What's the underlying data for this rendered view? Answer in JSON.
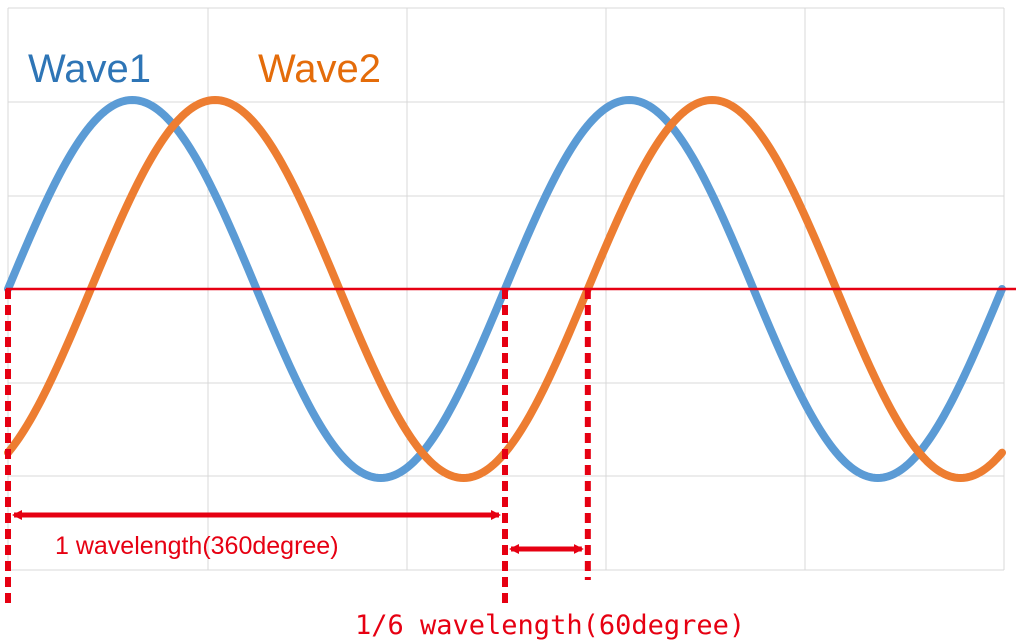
{
  "chart_data": {
    "type": "line",
    "x_unit": "degree",
    "xlim": [
      0,
      720
    ],
    "ylim": [
      -1,
      1
    ],
    "grid": true,
    "legend": [
      "Wave1",
      "Wave2"
    ],
    "series": [
      {
        "name": "Wave1",
        "phase_shift_degree": 0,
        "color": "#5b9bd5",
        "x": [
          0,
          30,
          60,
          90,
          120,
          150,
          180,
          210,
          240,
          270,
          300,
          330,
          360,
          390,
          420,
          450,
          480,
          510,
          540,
          570,
          600,
          630,
          660,
          690,
          720
        ],
        "values": [
          0,
          0.5,
          0.866,
          1,
          0.866,
          0.5,
          0,
          -0.5,
          -0.866,
          -1,
          -0.866,
          -0.5,
          0,
          0.5,
          0.866,
          1,
          0.866,
          0.5,
          0,
          -0.5,
          -0.866,
          -1,
          -0.866,
          -0.5,
          0
        ]
      },
      {
        "name": "Wave2",
        "phase_shift_degree": 60,
        "color": "#ed7d31",
        "x": [
          0,
          30,
          60,
          90,
          120,
          150,
          180,
          210,
          240,
          270,
          300,
          330,
          360,
          390,
          420,
          450,
          480,
          510,
          540,
          570,
          600,
          630,
          660,
          690,
          720
        ],
        "values": [
          -0.866,
          -0.5,
          0,
          0.5,
          0.866,
          1,
          0.866,
          0.5,
          0,
          -0.5,
          -0.866,
          -1,
          -0.866,
          -0.5,
          0,
          0.5,
          0.866,
          1,
          0.866,
          0.5,
          0,
          -0.5,
          -0.866,
          -1,
          -0.866
        ]
      }
    ],
    "annotations": [
      {
        "text": "1 wavelength(360degree)",
        "from_degree": 0,
        "to_degree": 360,
        "color": "#e60012"
      },
      {
        "text": "1/6 wavelength(60degree)",
        "from_degree": 360,
        "to_degree": 420,
        "color": "#e60012"
      }
    ],
    "zero_line_color": "#e60012",
    "grid_color": "#d9d9d9"
  }
}
